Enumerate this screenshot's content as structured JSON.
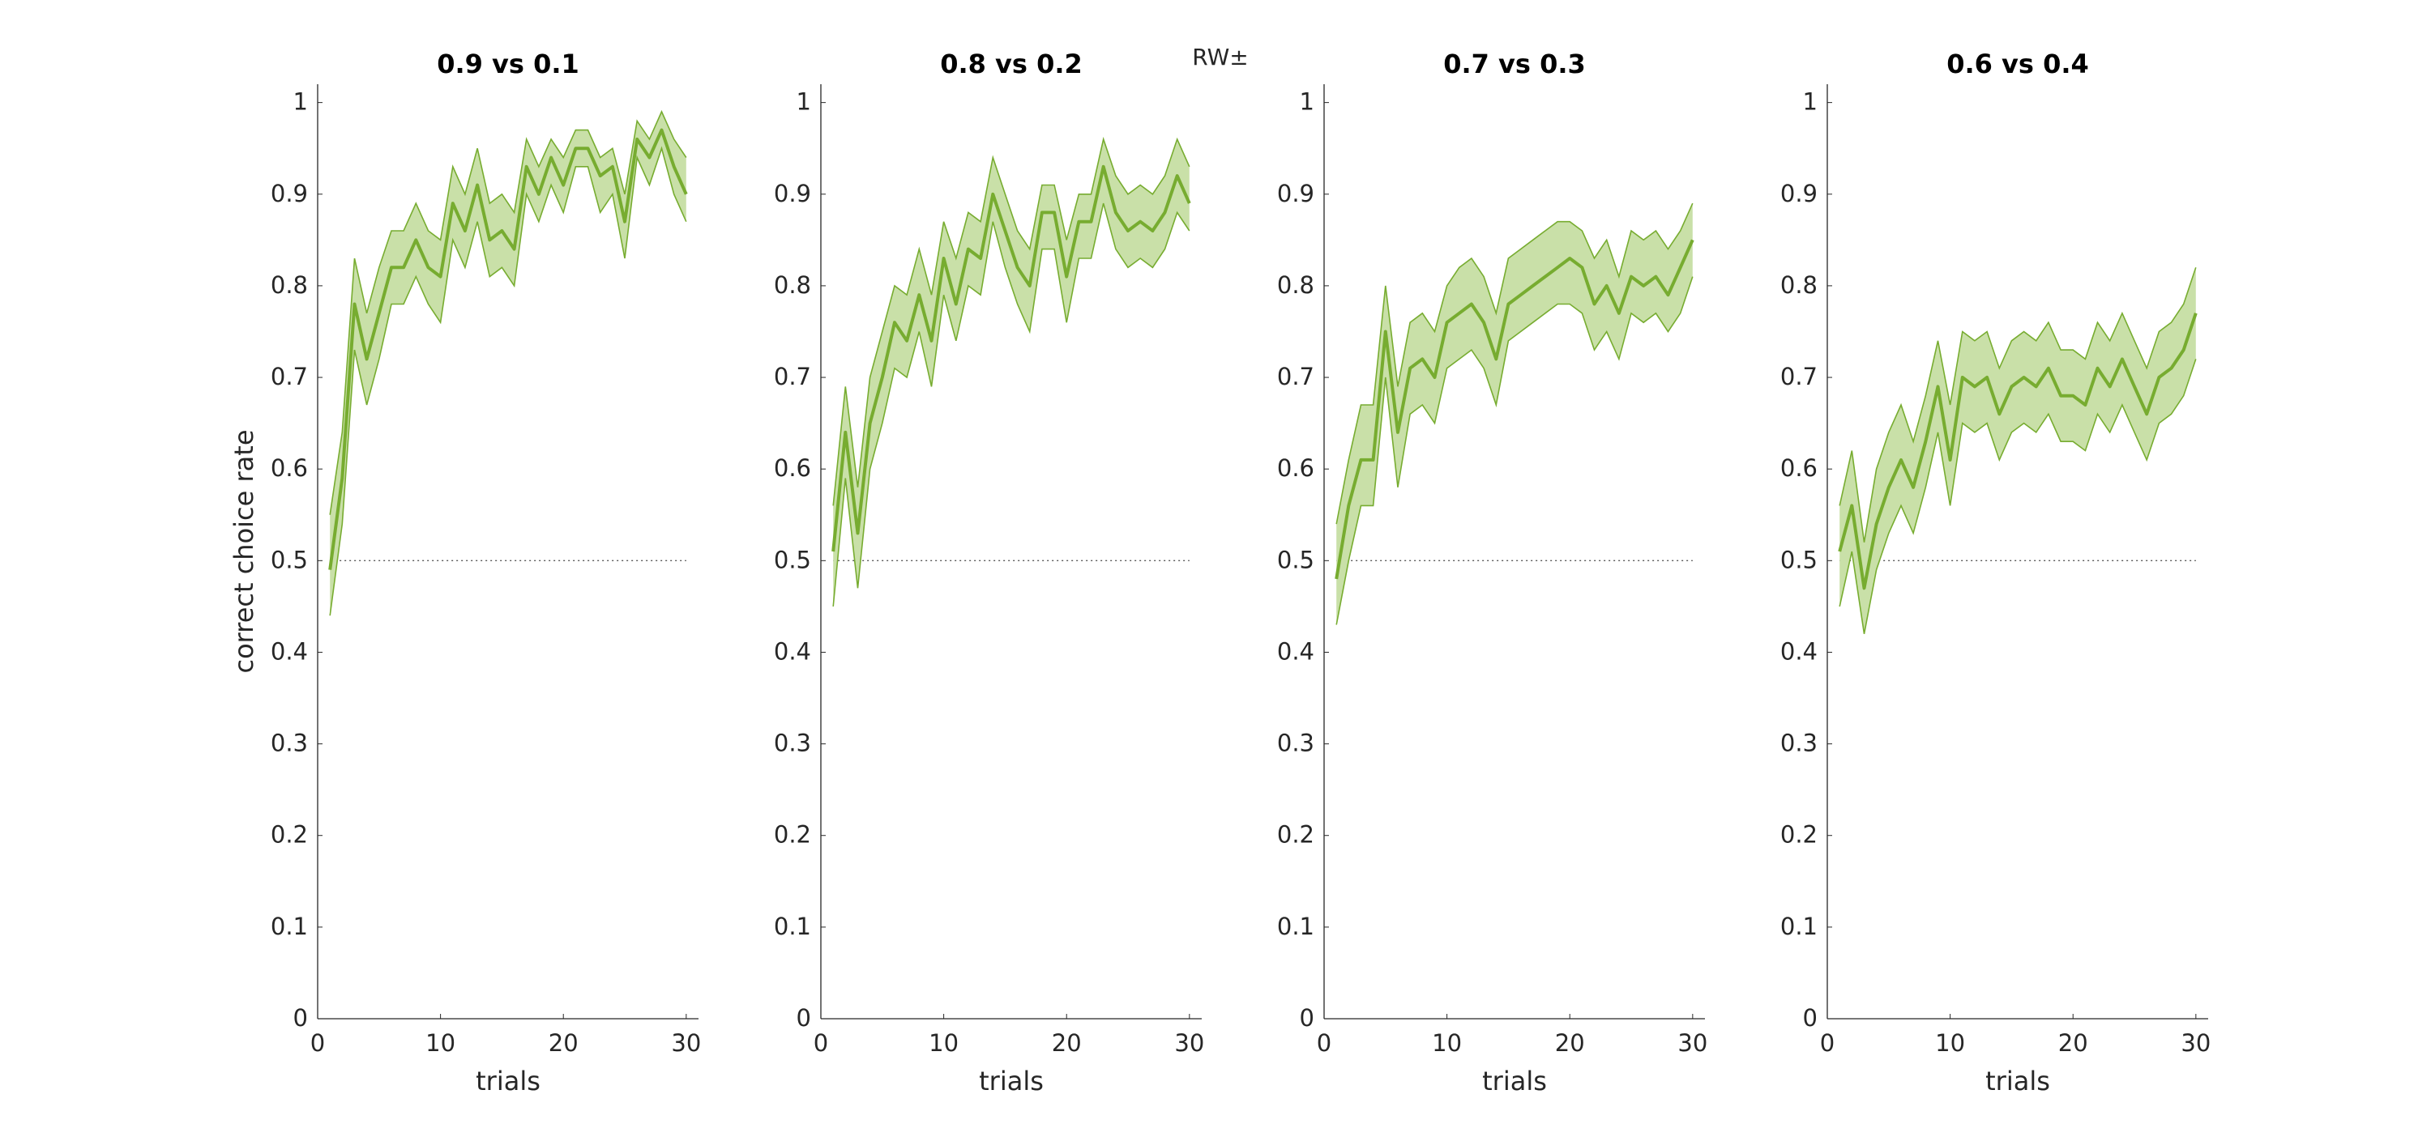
{
  "figure": {
    "suptitle": "RW±"
  },
  "colors": {
    "line": "#77ac30",
    "band": "#c9e0a8",
    "axis": "#262626",
    "ref": "#555555"
  },
  "chart_data": [
    {
      "type": "line",
      "title": "0.9 vs 0.1",
      "xlabel": "trials",
      "ylabel": "correct choice rate",
      "xlim": [
        0,
        31
      ],
      "ylim": [
        0,
        1.02
      ],
      "xticks": [
        0,
        10,
        20,
        30
      ],
      "yticks": [
        0,
        0.1,
        0.2,
        0.3,
        0.4,
        0.5,
        0.6,
        0.7,
        0.8,
        0.9,
        1
      ],
      "reference_line": 0.5,
      "grid": false,
      "x": [
        1,
        2,
        3,
        4,
        5,
        6,
        7,
        8,
        9,
        10,
        11,
        12,
        13,
        14,
        15,
        16,
        17,
        18,
        19,
        20,
        21,
        22,
        23,
        24,
        25,
        26,
        27,
        28,
        29,
        30
      ],
      "series": [
        {
          "mean": [
            0.49,
            0.59,
            0.78,
            0.72,
            0.77,
            0.82,
            0.82,
            0.85,
            0.82,
            0.81,
            0.89,
            0.86,
            0.91,
            0.85,
            0.86,
            0.84,
            0.93,
            0.9,
            0.94,
            0.91,
            0.95,
            0.95,
            0.92,
            0.93,
            0.87,
            0.96,
            0.94,
            0.97,
            0.93,
            0.9
          ],
          "upper": [
            0.55,
            0.64,
            0.83,
            0.77,
            0.82,
            0.86,
            0.86,
            0.89,
            0.86,
            0.85,
            0.93,
            0.9,
            0.95,
            0.89,
            0.9,
            0.88,
            0.96,
            0.93,
            0.96,
            0.94,
            0.97,
            0.97,
            0.94,
            0.95,
            0.9,
            0.98,
            0.96,
            0.99,
            0.96,
            0.94
          ],
          "lower": [
            0.44,
            0.54,
            0.73,
            0.67,
            0.72,
            0.78,
            0.78,
            0.81,
            0.78,
            0.76,
            0.85,
            0.82,
            0.87,
            0.81,
            0.82,
            0.8,
            0.9,
            0.87,
            0.91,
            0.88,
            0.93,
            0.93,
            0.88,
            0.9,
            0.83,
            0.94,
            0.91,
            0.95,
            0.9,
            0.87
          ]
        }
      ]
    },
    {
      "type": "line",
      "title": "0.8 vs 0.2",
      "xlabel": "trials",
      "ylabel": "",
      "xlim": [
        0,
        31
      ],
      "ylim": [
        0,
        1.02
      ],
      "xticks": [
        0,
        10,
        20,
        30
      ],
      "yticks": [
        0,
        0.1,
        0.2,
        0.3,
        0.4,
        0.5,
        0.6,
        0.7,
        0.8,
        0.9,
        1
      ],
      "reference_line": 0.5,
      "grid": false,
      "x": [
        1,
        2,
        3,
        4,
        5,
        6,
        7,
        8,
        9,
        10,
        11,
        12,
        13,
        14,
        15,
        16,
        17,
        18,
        19,
        20,
        21,
        22,
        23,
        24,
        25,
        26,
        27,
        28,
        29,
        30
      ],
      "series": [
        {
          "mean": [
            0.51,
            0.64,
            0.53,
            0.65,
            0.7,
            0.76,
            0.74,
            0.79,
            0.74,
            0.83,
            0.78,
            0.84,
            0.83,
            0.9,
            0.86,
            0.82,
            0.8,
            0.88,
            0.88,
            0.81,
            0.87,
            0.87,
            0.93,
            0.88,
            0.86,
            0.87,
            0.86,
            0.88,
            0.92,
            0.89
          ],
          "upper": [
            0.56,
            0.69,
            0.58,
            0.7,
            0.75,
            0.8,
            0.79,
            0.84,
            0.79,
            0.87,
            0.83,
            0.88,
            0.87,
            0.94,
            0.9,
            0.86,
            0.84,
            0.91,
            0.91,
            0.85,
            0.9,
            0.9,
            0.96,
            0.92,
            0.9,
            0.91,
            0.9,
            0.92,
            0.96,
            0.93
          ],
          "lower": [
            0.45,
            0.59,
            0.47,
            0.6,
            0.65,
            0.71,
            0.7,
            0.75,
            0.69,
            0.79,
            0.74,
            0.8,
            0.79,
            0.87,
            0.82,
            0.78,
            0.75,
            0.84,
            0.84,
            0.76,
            0.83,
            0.83,
            0.89,
            0.84,
            0.82,
            0.83,
            0.82,
            0.84,
            0.88,
            0.86
          ]
        }
      ]
    },
    {
      "type": "line",
      "title": "0.7 vs 0.3",
      "xlabel": "trials",
      "ylabel": "",
      "xlim": [
        0,
        31
      ],
      "ylim": [
        0,
        1.02
      ],
      "xticks": [
        0,
        10,
        20,
        30
      ],
      "yticks": [
        0,
        0.1,
        0.2,
        0.3,
        0.4,
        0.5,
        0.6,
        0.7,
        0.8,
        0.9,
        1
      ],
      "reference_line": 0.5,
      "grid": false,
      "x": [
        1,
        2,
        3,
        4,
        5,
        6,
        7,
        8,
        9,
        10,
        11,
        12,
        13,
        14,
        15,
        16,
        17,
        18,
        19,
        20,
        21,
        22,
        23,
        24,
        25,
        26,
        27,
        28,
        29,
        30
      ],
      "series": [
        {
          "mean": [
            0.48,
            0.56,
            0.61,
            0.61,
            0.75,
            0.64,
            0.71,
            0.72,
            0.7,
            0.76,
            0.77,
            0.78,
            0.76,
            0.72,
            0.78,
            0.79,
            0.8,
            0.81,
            0.82,
            0.83,
            0.82,
            0.78,
            0.8,
            0.77,
            0.81,
            0.8,
            0.81,
            0.79,
            0.82,
            0.85
          ],
          "upper": [
            0.54,
            0.61,
            0.67,
            0.67,
            0.8,
            0.69,
            0.76,
            0.77,
            0.75,
            0.8,
            0.82,
            0.83,
            0.81,
            0.77,
            0.83,
            0.84,
            0.85,
            0.86,
            0.87,
            0.87,
            0.86,
            0.83,
            0.85,
            0.81,
            0.86,
            0.85,
            0.86,
            0.84,
            0.86,
            0.89
          ],
          "lower": [
            0.43,
            0.5,
            0.56,
            0.56,
            0.7,
            0.58,
            0.66,
            0.67,
            0.65,
            0.71,
            0.72,
            0.73,
            0.71,
            0.67,
            0.74,
            0.75,
            0.76,
            0.77,
            0.78,
            0.78,
            0.77,
            0.73,
            0.75,
            0.72,
            0.77,
            0.76,
            0.77,
            0.75,
            0.77,
            0.81
          ]
        }
      ]
    },
    {
      "type": "line",
      "title": "0.6 vs 0.4",
      "xlabel": "trials",
      "ylabel": "",
      "xlim": [
        0,
        31
      ],
      "ylim": [
        0,
        1.02
      ],
      "xticks": [
        0,
        10,
        20,
        30
      ],
      "yticks": [
        0,
        0.1,
        0.2,
        0.3,
        0.4,
        0.5,
        0.6,
        0.7,
        0.8,
        0.9,
        1
      ],
      "reference_line": 0.5,
      "grid": false,
      "x": [
        1,
        2,
        3,
        4,
        5,
        6,
        7,
        8,
        9,
        10,
        11,
        12,
        13,
        14,
        15,
        16,
        17,
        18,
        19,
        20,
        21,
        22,
        23,
        24,
        25,
        26,
        27,
        28,
        29,
        30
      ],
      "series": [
        {
          "mean": [
            0.51,
            0.56,
            0.47,
            0.54,
            0.58,
            0.61,
            0.58,
            0.63,
            0.69,
            0.61,
            0.7,
            0.69,
            0.7,
            0.66,
            0.69,
            0.7,
            0.69,
            0.71,
            0.68,
            0.68,
            0.67,
            0.71,
            0.69,
            0.72,
            0.69,
            0.66,
            0.7,
            0.71,
            0.73,
            0.77
          ],
          "upper": [
            0.56,
            0.62,
            0.52,
            0.6,
            0.64,
            0.67,
            0.63,
            0.68,
            0.74,
            0.67,
            0.75,
            0.74,
            0.75,
            0.71,
            0.74,
            0.75,
            0.74,
            0.76,
            0.73,
            0.73,
            0.72,
            0.76,
            0.74,
            0.77,
            0.74,
            0.71,
            0.75,
            0.76,
            0.78,
            0.82
          ],
          "lower": [
            0.45,
            0.51,
            0.42,
            0.49,
            0.53,
            0.56,
            0.53,
            0.58,
            0.64,
            0.56,
            0.65,
            0.64,
            0.65,
            0.61,
            0.64,
            0.65,
            0.64,
            0.66,
            0.63,
            0.63,
            0.62,
            0.66,
            0.64,
            0.67,
            0.64,
            0.61,
            0.65,
            0.66,
            0.68,
            0.72
          ]
        }
      ]
    }
  ]
}
